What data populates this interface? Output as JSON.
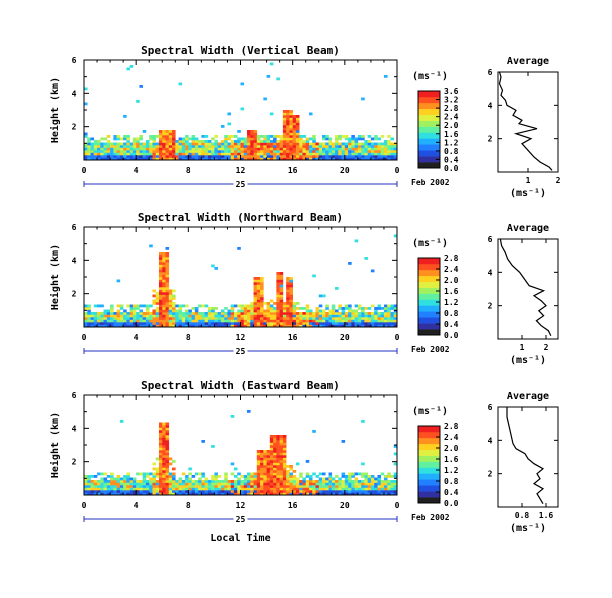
{
  "colors": {
    "scale": [
      "#202020",
      "#3030a0",
      "#2050e0",
      "#2080ff",
      "#20b0ff",
      "#30e0e0",
      "#60f0a0",
      "#a0f060",
      "#e0f040",
      "#ffd020",
      "#ff9020",
      "#ff5020",
      "#f02020"
    ]
  },
  "chart_data": [
    {
      "type": "heatmap",
      "title": "Spectral Width (Vertical Beam)",
      "ylabel": "Height (km)",
      "ylim": [
        0,
        6
      ],
      "y_ticks": [
        "6",
        "4",
        "2"
      ],
      "xlim": [
        0,
        24
      ],
      "x_ticks": [
        "0",
        "4",
        "8",
        "12",
        "16",
        "20",
        "0"
      ],
      "date_day": "25",
      "date_label": "Feb 2002",
      "colorbar": {
        "unit": "(ms⁻¹)",
        "range": [
          0.0,
          3.6
        ],
        "ticks": [
          "3.6",
          "3.2",
          "2.8",
          "2.4",
          "2.0",
          "1.6",
          "1.2",
          "0.8",
          "0.4",
          "0.0"
        ]
      },
      "profile": {
        "title": "Average",
        "xlabel": "(ms⁻¹)",
        "xlim": [
          0,
          2
        ],
        "x_ticks": [
          "1",
          "2"
        ],
        "ylim": [
          0,
          6
        ],
        "y_ticks": [
          "6",
          "4",
          "2"
        ],
        "points": [
          [
            1.8,
            0.1
          ],
          [
            1.7,
            0.3
          ],
          [
            1.4,
            0.6
          ],
          [
            1.2,
            0.9
          ],
          [
            1.0,
            1.3
          ],
          [
            0.8,
            1.7
          ],
          [
            1.1,
            2.0
          ],
          [
            0.6,
            2.3
          ],
          [
            1.3,
            2.6
          ],
          [
            0.7,
            2.9
          ],
          [
            0.8,
            3.1
          ],
          [
            0.5,
            3.4
          ],
          [
            0.6,
            3.7
          ],
          [
            0.3,
            4.0
          ],
          [
            0.25,
            4.3
          ],
          [
            0.1,
            4.6
          ],
          [
            0.15,
            4.9
          ],
          [
            0.05,
            5.3
          ],
          [
            0.1,
            5.7
          ],
          [
            0.05,
            6.0
          ]
        ]
      }
    },
    {
      "type": "heatmap",
      "title": "Spectral Width (Northward Beam)",
      "ylabel": "Height (km)",
      "ylim": [
        0,
        6
      ],
      "y_ticks": [
        "6",
        "4",
        "2"
      ],
      "xlim": [
        0,
        24
      ],
      "x_ticks": [
        "0",
        "4",
        "8",
        "12",
        "16",
        "20",
        "0"
      ],
      "date_day": "25",
      "date_label": "Feb 2002",
      "colorbar": {
        "unit": "(ms⁻¹)",
        "range": [
          0.0,
          2.8
        ],
        "ticks": [
          "2.8",
          "2.4",
          "2.0",
          "1.6",
          "1.2",
          "0.8",
          "0.4",
          "0.0"
        ]
      },
      "profile": {
        "title": "Average",
        "xlabel": "(ms⁻¹)",
        "xlim": [
          0,
          2.5
        ],
        "x_ticks": [
          "1",
          "2"
        ],
        "ylim": [
          0,
          6
        ],
        "y_ticks": [
          "6",
          "4",
          "2"
        ],
        "points": [
          [
            2.2,
            0.2
          ],
          [
            2.1,
            0.5
          ],
          [
            1.8,
            0.8
          ],
          [
            1.6,
            1.1
          ],
          [
            1.9,
            1.4
          ],
          [
            1.7,
            1.7
          ],
          [
            2.0,
            2.0
          ],
          [
            1.8,
            2.3
          ],
          [
            1.5,
            2.6
          ],
          [
            1.9,
            2.9
          ],
          [
            1.3,
            3.2
          ],
          [
            1.1,
            3.6
          ],
          [
            0.9,
            4.0
          ],
          [
            0.6,
            4.4
          ],
          [
            0.4,
            4.8
          ],
          [
            0.3,
            5.2
          ],
          [
            0.15,
            5.6
          ],
          [
            0.1,
            6.0
          ]
        ]
      }
    },
    {
      "type": "heatmap",
      "title": "Spectral Width (Eastward Beam)",
      "ylabel": "Height (km)",
      "ylim": [
        0,
        6
      ],
      "y_ticks": [
        "6",
        "4",
        "2"
      ],
      "xlim": [
        0,
        24
      ],
      "x_ticks": [
        "0",
        "4",
        "8",
        "12",
        "16",
        "20",
        "0"
      ],
      "date_day": "25",
      "date_label": "Feb 2002",
      "xlabel": "Local Time",
      "colorbar": {
        "unit": "(ms⁻¹)",
        "range": [
          0.0,
          2.8
        ],
        "ticks": [
          "2.8",
          "2.4",
          "2.0",
          "1.6",
          "1.2",
          "0.8",
          "0.4",
          "0.0"
        ]
      },
      "profile": {
        "title": "Average",
        "xlabel": "(ms⁻¹)",
        "xlim": [
          0,
          2.0
        ],
        "x_ticks": [
          "0.8",
          "1.6"
        ],
        "x_tick_values": [
          0.8,
          1.6
        ],
        "ylim": [
          0,
          6
        ],
        "y_ticks": [
          "6",
          "4",
          "2"
        ],
        "points": [
          [
            1.5,
            0.2
          ],
          [
            1.4,
            0.5
          ],
          [
            1.3,
            0.8
          ],
          [
            1.5,
            1.1
          ],
          [
            1.2,
            1.4
          ],
          [
            1.4,
            1.7
          ],
          [
            1.3,
            2.0
          ],
          [
            1.5,
            2.3
          ],
          [
            1.2,
            2.6
          ],
          [
            1.0,
            2.9
          ],
          [
            0.9,
            3.2
          ],
          [
            0.6,
            3.5
          ],
          [
            0.5,
            3.8
          ],
          [
            0.45,
            4.2
          ],
          [
            0.4,
            4.6
          ],
          [
            0.35,
            5.0
          ],
          [
            0.3,
            5.4
          ],
          [
            0.3,
            6.0
          ]
        ]
      }
    }
  ]
}
